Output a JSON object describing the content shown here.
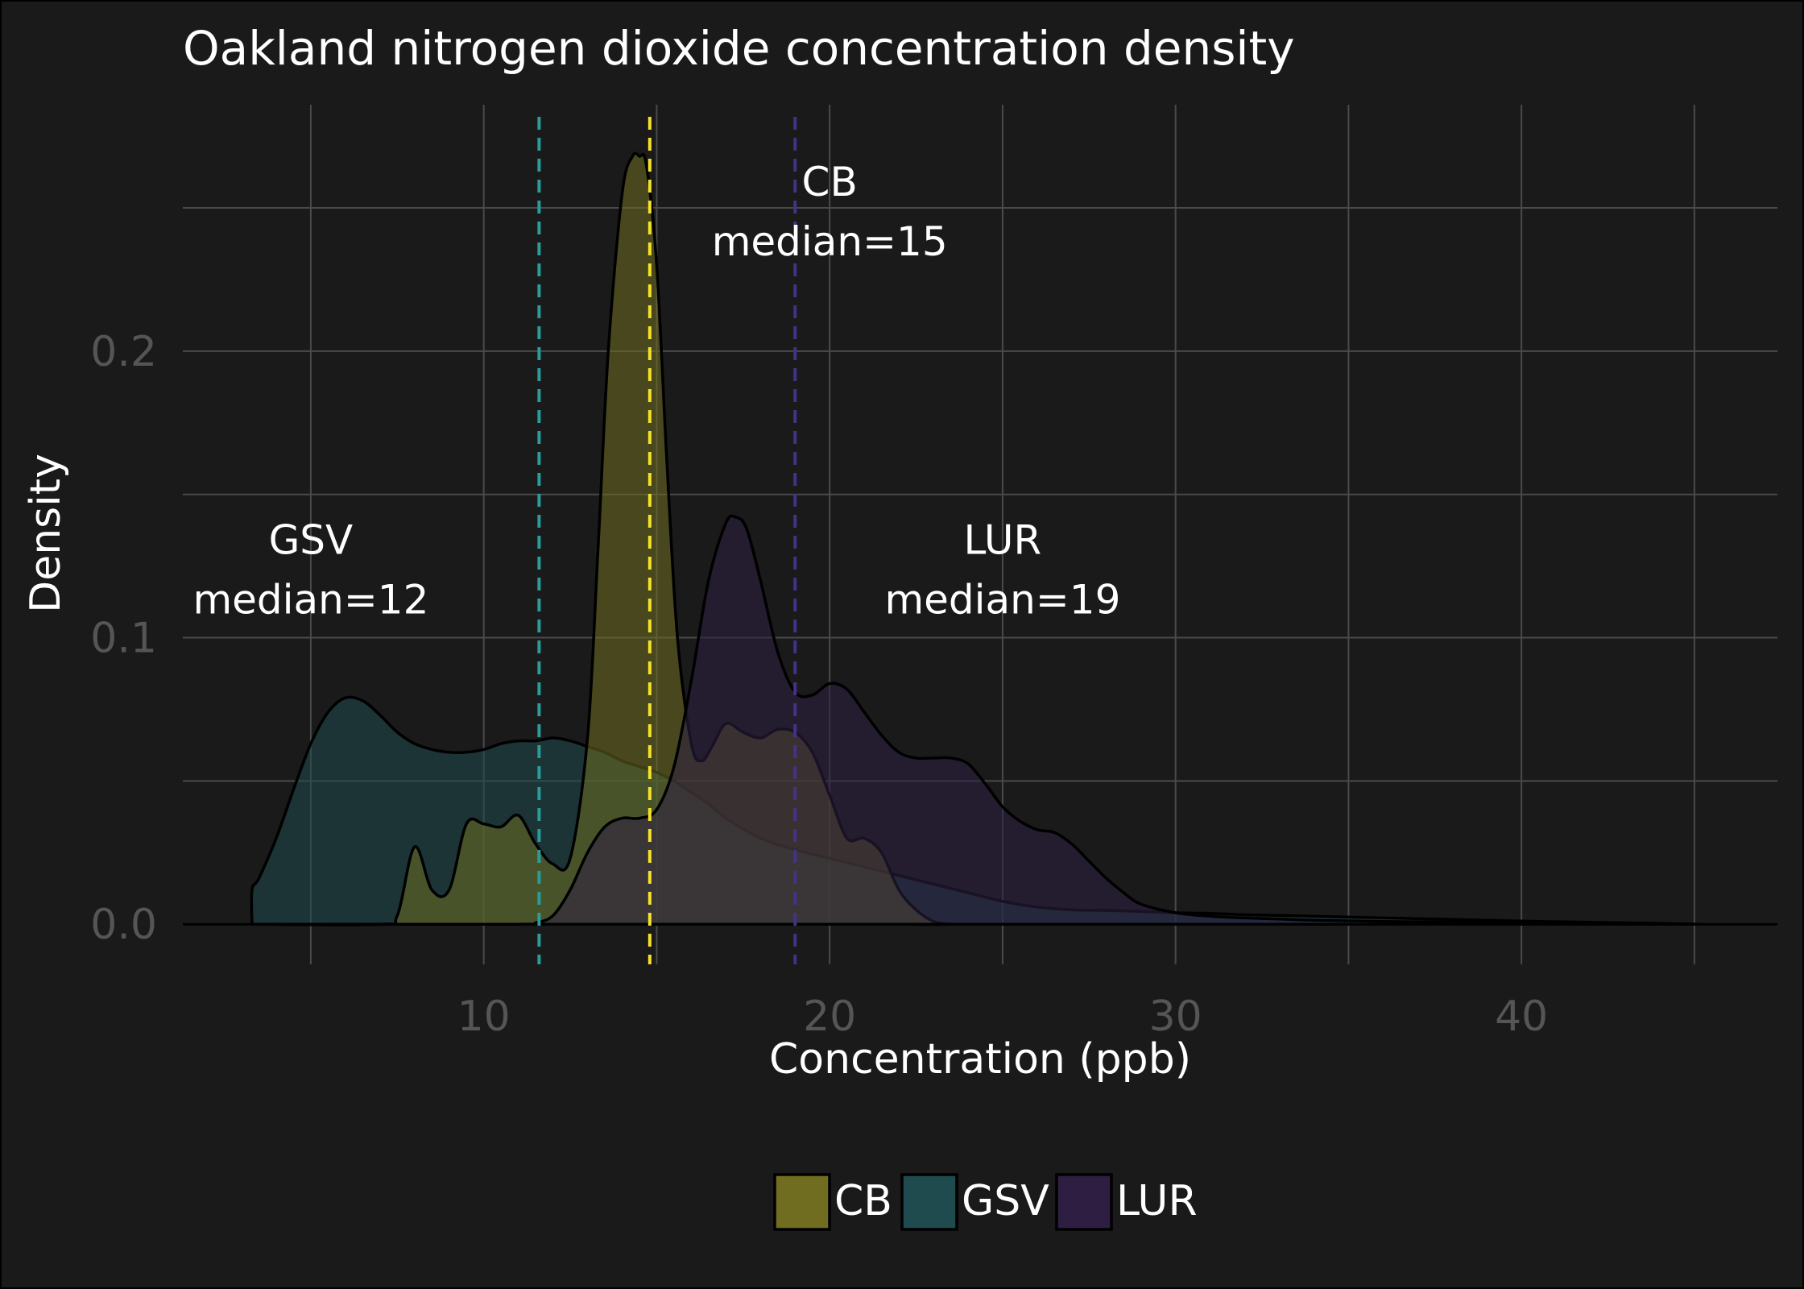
{
  "chart_data": {
    "type": "area",
    "title": "Oakland nitrogen dioxide concentration density",
    "xlabel": "Concentration (ppb)",
    "ylabel": "Density",
    "xlim": [
      1.3,
      47.4
    ],
    "ylim": [
      -0.014,
      0.286
    ],
    "x_ticks": [
      10,
      20,
      30,
      40
    ],
    "x_tick_labels": [
      "10",
      "20",
      "30",
      "40"
    ],
    "y_ticks": [
      0.0,
      0.1,
      0.2
    ],
    "y_tick_labels": [
      "0.0",
      "0.1",
      "0.2"
    ],
    "x_minor_grid": [
      5,
      15,
      25,
      35,
      45
    ],
    "y_minor_grid": [
      0.05,
      0.15,
      0.25
    ],
    "grid": true,
    "legend_position": "bottom",
    "series": [
      {
        "name": "GSV",
        "color": "#1f4a4e",
        "median_line_color": "#2a9d9b",
        "median": 11.6,
        "annotation": [
          "GSV",
          "median=12"
        ],
        "annotation_pos": [
          5.0,
          0.118
        ],
        "x": [
          3.3,
          3.3,
          3.5,
          4.0,
          4.5,
          5.0,
          5.5,
          6.0,
          6.5,
          7.0,
          7.5,
          8.0,
          8.5,
          9.0,
          9.5,
          10.0,
          10.5,
          11.0,
          11.5,
          12.0,
          12.5,
          13.0,
          13.5,
          14.0,
          14.5,
          15.0,
          15.5,
          16.0,
          16.5,
          17.0,
          18.0,
          19.0,
          20.0,
          21.0,
          22.0,
          23.0,
          24.0,
          25.0,
          26.0,
          27.0,
          28.0,
          29.0,
          30.0,
          31.0,
          32.0,
          34.0,
          36.0,
          38.0,
          40.0,
          42.0,
          44.0,
          45.1
        ],
        "y": [
          0.0,
          0.012,
          0.016,
          0.03,
          0.047,
          0.063,
          0.074,
          0.079,
          0.078,
          0.073,
          0.067,
          0.063,
          0.061,
          0.06,
          0.06,
          0.061,
          0.063,
          0.064,
          0.064,
          0.065,
          0.064,
          0.062,
          0.06,
          0.057,
          0.055,
          0.053,
          0.05,
          0.046,
          0.042,
          0.037,
          0.03,
          0.026,
          0.023,
          0.02,
          0.017,
          0.014,
          0.011,
          0.008,
          0.006,
          0.005,
          0.0048,
          0.0045,
          0.004,
          0.0038,
          0.0033,
          0.0028,
          0.0022,
          0.0017,
          0.0011,
          0.0007,
          0.0003,
          0.0
        ]
      },
      {
        "name": "CB",
        "color": "#706d20",
        "median_line_color": "#f5e12a",
        "median": 14.8,
        "annotation": [
          "CB",
          "median=15"
        ],
        "annotation_pos": [
          20.0,
          0.243
        ],
        "x": [
          3.3,
          7.0,
          7.5,
          8.0,
          8.5,
          9.0,
          9.5,
          10.0,
          10.5,
          11.0,
          11.5,
          12.0,
          12.5,
          13.0,
          13.3,
          13.6,
          14.0,
          14.3,
          14.5,
          14.7,
          15.0,
          15.3,
          15.6,
          16.0,
          16.3,
          16.6,
          17.0,
          17.5,
          18.0,
          18.5,
          19.0,
          19.5,
          20.0,
          20.5,
          21.0,
          21.5,
          22.0,
          22.5,
          23.0,
          23.5,
          24.0,
          45.1
        ],
        "y": [
          0.0,
          0.0,
          0.003,
          0.027,
          0.012,
          0.012,
          0.035,
          0.035,
          0.034,
          0.038,
          0.028,
          0.021,
          0.023,
          0.065,
          0.13,
          0.2,
          0.255,
          0.268,
          0.268,
          0.265,
          0.23,
          0.16,
          0.1,
          0.063,
          0.057,
          0.062,
          0.07,
          0.067,
          0.065,
          0.068,
          0.067,
          0.06,
          0.045,
          0.03,
          0.03,
          0.025,
          0.012,
          0.005,
          0.001,
          0.0,
          0.0,
          0.0
        ]
      },
      {
        "name": "LUR",
        "color": "#2e1f42",
        "median_line_color": "#44328a",
        "median": 19.0,
        "annotation": [
          "LUR",
          "median=19"
        ],
        "annotation_pos": [
          25.0,
          0.118
        ],
        "x": [
          3.3,
          11.0,
          11.5,
          12.0,
          12.5,
          13.0,
          13.5,
          14.0,
          14.5,
          15.0,
          15.5,
          16.0,
          16.5,
          17.0,
          17.3,
          17.6,
          18.0,
          18.5,
          19.0,
          19.5,
          20.0,
          20.5,
          21.0,
          21.5,
          22.0,
          22.5,
          23.0,
          23.5,
          24.0,
          24.5,
          25.0,
          25.5,
          26.0,
          26.5,
          27.0,
          27.5,
          28.0,
          28.5,
          29.0,
          30.0,
          31.0,
          32.0,
          33.0,
          34.0,
          36.0,
          38.0,
          40.0,
          42.0,
          44.0,
          45.1
        ],
        "y": [
          0.0,
          0.0,
          0.0005,
          0.003,
          0.012,
          0.025,
          0.034,
          0.037,
          0.037,
          0.04,
          0.055,
          0.085,
          0.12,
          0.14,
          0.142,
          0.138,
          0.12,
          0.095,
          0.081,
          0.08,
          0.084,
          0.082,
          0.074,
          0.066,
          0.06,
          0.058,
          0.058,
          0.058,
          0.056,
          0.049,
          0.041,
          0.036,
          0.033,
          0.032,
          0.028,
          0.022,
          0.016,
          0.011,
          0.007,
          0.004,
          0.0028,
          0.0022,
          0.0018,
          0.0014,
          0.001,
          0.0008,
          0.0006,
          0.0004,
          0.0002,
          0.0
        ]
      }
    ]
  },
  "legend": {
    "items": [
      {
        "label": "CB",
        "color": "#706d20"
      },
      {
        "label": "GSV",
        "color": "#1f4a4e"
      },
      {
        "label": "LUR",
        "color": "#2e1f42"
      }
    ]
  }
}
